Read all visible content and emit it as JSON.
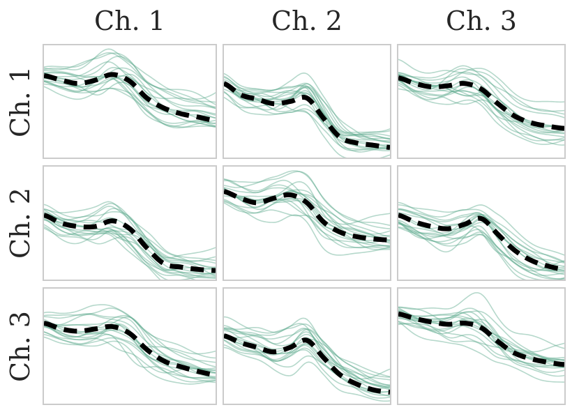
{
  "style": {
    "background": "#ffffff",
    "text_color": "#262626",
    "panel_border_color": "#cbcbcb",
    "ensemble_color": "#5ca88b",
    "ensemble_alpha": 0.45,
    "ensemble_line_width": 1.6,
    "mean_color": "#000000",
    "mean_line_width": 7,
    "mean_dash": [
      19,
      11
    ]
  },
  "chart_data": {
    "type": "line",
    "description": "3x3 grid of panels (channel pairs). Each panel shows ~17 translucent green individual traces and one thick black dashed mean trace. Axes are frames only: no ticks, no tick labels, no gridlines.",
    "col_titles": [
      "Ch. 1",
      "Ch. 2",
      "Ch. 3"
    ],
    "row_labels": [
      "Ch. 1",
      "Ch. 2",
      "Ch. 3"
    ],
    "x": [
      0,
      0.1,
      0.2,
      0.3,
      0.4,
      0.5,
      0.6,
      0.7,
      0.8,
      0.9,
      1.0
    ],
    "y_range": [
      0,
      1
    ],
    "ensemble_lines_per_panel": 17,
    "panels": [
      {
        "row": "Ch. 1",
        "col": "Ch. 1",
        "mean": [
          0.73,
          0.69,
          0.66,
          0.69,
          0.74,
          0.68,
          0.53,
          0.44,
          0.39,
          0.36,
          0.33
        ]
      },
      {
        "row": "Ch. 1",
        "col": "Ch. 2",
        "mean": [
          0.66,
          0.56,
          0.52,
          0.48,
          0.5,
          0.53,
          0.35,
          0.18,
          0.13,
          0.11,
          0.09
        ]
      },
      {
        "row": "Ch. 1",
        "col": "Ch. 3",
        "mean": [
          0.71,
          0.66,
          0.63,
          0.64,
          0.66,
          0.61,
          0.48,
          0.37,
          0.31,
          0.28,
          0.26
        ]
      },
      {
        "row": "Ch. 2",
        "col": "Ch. 1",
        "mean": [
          0.57,
          0.5,
          0.47,
          0.47,
          0.52,
          0.45,
          0.28,
          0.14,
          0.11,
          0.09,
          0.08
        ]
      },
      {
        "row": "Ch. 2",
        "col": "Ch. 2",
        "mean": [
          0.78,
          0.72,
          0.68,
          0.72,
          0.75,
          0.68,
          0.51,
          0.42,
          0.38,
          0.36,
          0.35
        ]
      },
      {
        "row": "Ch. 2",
        "col": "Ch. 3",
        "mean": [
          0.57,
          0.51,
          0.47,
          0.45,
          0.49,
          0.54,
          0.4,
          0.26,
          0.17,
          0.12,
          0.09
        ]
      },
      {
        "row": "Ch. 3",
        "col": "Ch. 1",
        "mean": [
          0.7,
          0.65,
          0.63,
          0.65,
          0.67,
          0.61,
          0.47,
          0.37,
          0.32,
          0.28,
          0.25
        ]
      },
      {
        "row": "Ch. 3",
        "col": "Ch. 2",
        "mean": [
          0.59,
          0.53,
          0.49,
          0.45,
          0.49,
          0.55,
          0.4,
          0.25,
          0.17,
          0.12,
          0.1
        ]
      },
      {
        "row": "Ch. 3",
        "col": "Ch. 3",
        "mean": [
          0.78,
          0.74,
          0.71,
          0.69,
          0.7,
          0.66,
          0.54,
          0.44,
          0.39,
          0.36,
          0.34
        ]
      }
    ]
  }
}
